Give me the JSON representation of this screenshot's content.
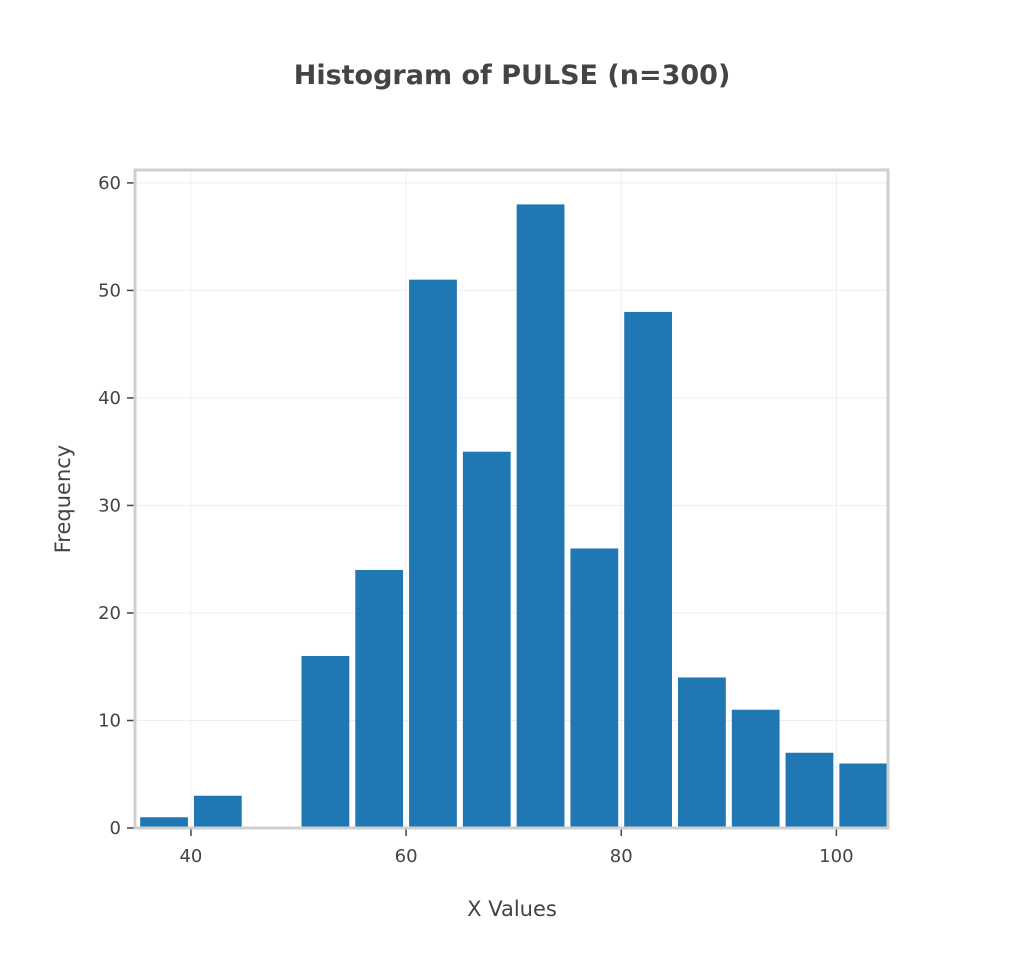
{
  "chart_data": {
    "type": "bar",
    "title": "Histogram of PULSE (n=300)",
    "xlabel": "X Values",
    "ylabel": "Frequency",
    "bin_width": 5,
    "bins": [
      {
        "x0": 35,
        "x1": 40,
        "count": 1
      },
      {
        "x0": 40,
        "x1": 45,
        "count": 3
      },
      {
        "x0": 45,
        "x1": 50,
        "count": 0
      },
      {
        "x0": 50,
        "x1": 55,
        "count": 16
      },
      {
        "x0": 55,
        "x1": 60,
        "count": 24
      },
      {
        "x0": 60,
        "x1": 65,
        "count": 51
      },
      {
        "x0": 65,
        "x1": 70,
        "count": 35
      },
      {
        "x0": 70,
        "x1": 75,
        "count": 58
      },
      {
        "x0": 75,
        "x1": 80,
        "count": 26
      },
      {
        "x0": 80,
        "x1": 85,
        "count": 48
      },
      {
        "x0": 85,
        "x1": 90,
        "count": 14
      },
      {
        "x0": 90,
        "x1": 95,
        "count": 11
      },
      {
        "x0": 95,
        "x1": 100,
        "count": 7
      },
      {
        "x0": 100,
        "x1": 105,
        "count": 6
      }
    ],
    "xlim": [
      34.8,
      104.8
    ],
    "ylim": [
      0,
      61.2
    ],
    "x_ticks": [
      40,
      60,
      80,
      100
    ],
    "y_ticks": [
      0,
      10,
      20,
      30,
      40,
      50,
      60
    ],
    "grid": true,
    "bar_color": "#1f77b4"
  }
}
